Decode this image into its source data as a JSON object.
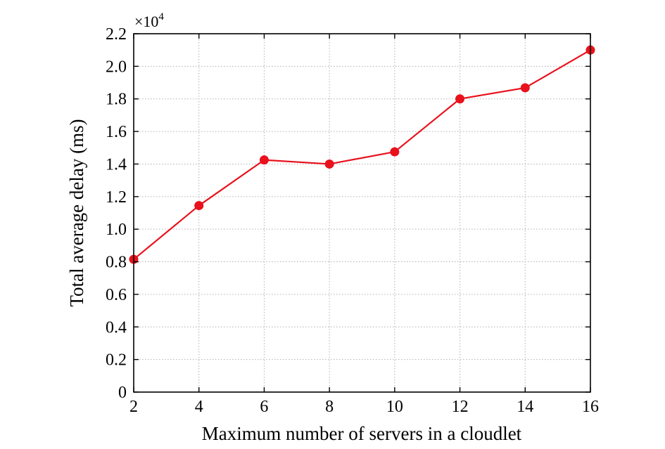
{
  "chart_data": {
    "type": "line",
    "xlabel": "Maximum number of servers in a cloudlet",
    "ylabel": "Total average delay (ms)",
    "multiplier_base": "×10",
    "multiplier_exp": "4",
    "xlim": [
      2,
      16
    ],
    "ylim": [
      0,
      2.2
    ],
    "xticks": [
      2,
      4,
      6,
      8,
      10,
      12,
      14,
      16
    ],
    "xtick_labels": [
      "2",
      "4",
      "6",
      "8",
      "10",
      "12",
      "14",
      "16"
    ],
    "yticks": [
      0,
      0.2,
      0.4,
      0.6,
      0.8,
      1.0,
      1.2,
      1.4,
      1.6,
      1.8,
      2.0,
      2.2
    ],
    "ytick_labels": [
      "0",
      "0.2",
      "0.4",
      "0.6",
      "0.8",
      "1.0",
      "1.2",
      "1.4",
      "1.6",
      "1.8",
      "2.0",
      "2.2"
    ],
    "grid": true,
    "series": [
      {
        "color": "#e8111c",
        "marker": "circle",
        "x": [
          2,
          4,
          6,
          8,
          10,
          12,
          14,
          16
        ],
        "y": [
          0.815,
          1.145,
          1.425,
          1.4,
          1.475,
          1.8,
          1.868,
          2.1
        ]
      }
    ]
  }
}
